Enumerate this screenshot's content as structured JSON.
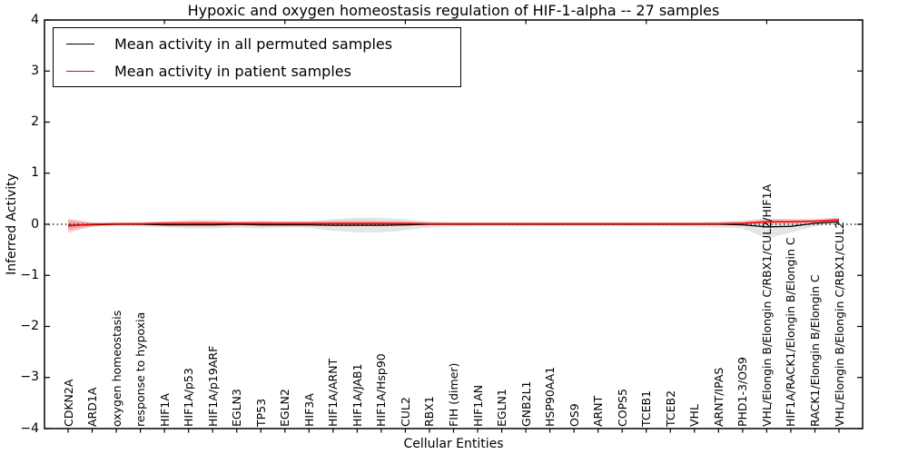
{
  "title": "Hypoxic and oxygen homeostasis regulation of HIF-1-alpha -- 27 samples",
  "axes": {
    "ylabel": "Inferred Activity",
    "xlabel": "Cellular Entities",
    "ytick_labels": [
      "4",
      "3",
      "2",
      "1",
      "0",
      "−1",
      "−2",
      "−3",
      "−4"
    ],
    "ytick_values": [
      4,
      3,
      2,
      1,
      0,
      -1,
      -2,
      -3,
      -4
    ]
  },
  "legend": {
    "items": [
      {
        "label": "Mean activity in all permuted samples",
        "color": "#000000"
      },
      {
        "label": "Mean activity in patient samples",
        "color": "#ff0000"
      }
    ]
  },
  "chart_data": {
    "type": "line",
    "title": "Hypoxic and oxygen homeostasis regulation of HIF-1-alpha -- 27 samples",
    "xlabel": "Cellular Entities",
    "ylabel": "Inferred Activity",
    "ylim": [
      -4,
      4
    ],
    "grid": false,
    "legend_position": "upper left",
    "zero_line": {
      "value": 0,
      "style": "dotted",
      "color": "#000000"
    },
    "top_tick_indices": [
      4,
      9,
      14,
      19,
      24,
      29
    ],
    "categories": [
      "CDKN2A",
      "ARD1A",
      "oxygen homeostasis",
      "response to hypoxia",
      "HIF1A",
      "HIF1A/p53",
      "HIF1A/p19ARF",
      "EGLN3",
      "TP53",
      "EGLN2",
      "HIF3A",
      "HIF1A/ARNT",
      "HIF1A/JAB1",
      "HIF1A/Hsp90",
      "CUL2",
      "RBX1",
      "FIH (dimer)",
      "HIF1AN",
      "EGLN1",
      "GNB2L1",
      "HSP90AA1",
      "OS9",
      "ARNT",
      "COPS5",
      "TCEB1",
      "TCEB2",
      "VHL",
      "ARNT/IPAS",
      "PHD1-3/OS9",
      "VHL/Elongin B/Elongin C/RBX1/CUL2/HIF1A",
      "HIF1A/RACK1/Elongin B/Elongin C",
      "RACK1/Elongin B/Elongin C",
      "VHL/Elongin B/Elongin C/RBX1/CUL2"
    ],
    "series": [
      {
        "name": "Mean activity in all permuted samples",
        "color": "#000000",
        "values": [
          -0.02,
          -0.01,
          0.0,
          0.0,
          -0.01,
          -0.01,
          -0.01,
          0.0,
          -0.01,
          -0.01,
          -0.01,
          -0.02,
          -0.02,
          -0.02,
          -0.01,
          0.0,
          0.0,
          0.0,
          0.0,
          0.0,
          0.0,
          0.0,
          0.0,
          0.0,
          0.0,
          0.0,
          0.0,
          0.0,
          -0.01,
          -0.05,
          -0.04,
          0.02,
          0.05
        ]
      },
      {
        "name": "Mean activity in patient samples",
        "color": "#ff0000",
        "values": [
          -0.03,
          0.0,
          0.01,
          0.01,
          0.02,
          0.02,
          0.02,
          0.02,
          0.02,
          0.02,
          0.02,
          0.02,
          0.02,
          0.02,
          0.02,
          0.01,
          0.01,
          0.01,
          0.01,
          0.01,
          0.01,
          0.01,
          0.01,
          0.01,
          0.01,
          0.01,
          0.01,
          0.01,
          0.02,
          0.05,
          0.05,
          0.06,
          0.09
        ]
      }
    ],
    "bands": [
      {
        "name": "permuted-samples-range",
        "color": "rgba(0,0,0,0.10)",
        "upper": [
          0.09,
          0.04,
          0.03,
          0.03,
          0.05,
          0.07,
          0.07,
          0.06,
          0.07,
          0.06,
          0.06,
          0.1,
          0.13,
          0.13,
          0.1,
          0.05,
          0.04,
          0.04,
          0.04,
          0.04,
          0.04,
          0.04,
          0.04,
          0.04,
          0.04,
          0.04,
          0.04,
          0.05,
          0.07,
          0.11,
          0.1,
          0.08,
          0.08
        ],
        "lower": [
          -0.13,
          -0.05,
          -0.04,
          -0.04,
          -0.06,
          -0.08,
          -0.08,
          -0.07,
          -0.08,
          -0.07,
          -0.07,
          -0.13,
          -0.16,
          -0.16,
          -0.12,
          -0.06,
          -0.05,
          -0.04,
          -0.04,
          -0.04,
          -0.04,
          -0.04,
          -0.04,
          -0.04,
          -0.04,
          -0.04,
          -0.05,
          -0.06,
          -0.08,
          -0.28,
          -0.16,
          -0.04,
          0.02
        ]
      },
      {
        "name": "patient-samples-outer-range",
        "color": "rgba(255,0,0,0.16)",
        "upper": [
          0.11,
          0.03,
          0.03,
          0.04,
          0.06,
          0.08,
          0.08,
          0.06,
          0.07,
          0.06,
          0.06,
          0.07,
          0.08,
          0.07,
          0.06,
          0.04,
          0.03,
          0.03,
          0.03,
          0.03,
          0.03,
          0.03,
          0.03,
          0.03,
          0.03,
          0.03,
          0.03,
          0.04,
          0.06,
          0.1,
          0.1,
          0.11,
          0.13
        ],
        "lower": [
          -0.17,
          -0.04,
          -0.02,
          -0.02,
          -0.03,
          -0.04,
          -0.04,
          -0.03,
          -0.04,
          -0.03,
          -0.03,
          -0.04,
          -0.04,
          -0.04,
          -0.03,
          -0.02,
          -0.02,
          -0.02,
          -0.02,
          -0.02,
          -0.02,
          -0.02,
          -0.02,
          -0.02,
          -0.02,
          -0.02,
          -0.02,
          -0.01,
          0.0,
          0.01,
          0.01,
          0.02,
          0.05
        ],
        "inner_upper": [
          0.06,
          0.02,
          0.02,
          0.02,
          0.03,
          0.04,
          0.04,
          0.03,
          0.04,
          0.03,
          0.03,
          0.04,
          0.04,
          0.04,
          0.03,
          0.02,
          0.02,
          0.02,
          0.02,
          0.02,
          0.02,
          0.02,
          0.02,
          0.02,
          0.02,
          0.02,
          0.02,
          0.02,
          0.03,
          0.05,
          0.05,
          0.06,
          0.07
        ],
        "inner_lower": [
          -0.09,
          -0.02,
          -0.01,
          -0.01,
          -0.02,
          -0.02,
          -0.02,
          -0.02,
          -0.02,
          -0.02,
          -0.02,
          -0.02,
          -0.02,
          -0.02,
          -0.02,
          -0.01,
          -0.01,
          -0.01,
          -0.01,
          -0.01,
          -0.01,
          -0.01,
          -0.01,
          -0.01,
          -0.01,
          -0.01,
          -0.01,
          -0.01,
          0.0,
          0.02,
          0.02,
          0.03,
          0.06
        ]
      }
    ]
  }
}
